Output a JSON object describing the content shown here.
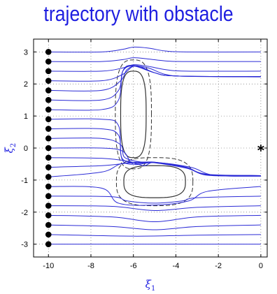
{
  "chart_data": {
    "type": "line",
    "title": "trajectory with obstacle",
    "xlabel": "ξ",
    "xlabel_sub": "1",
    "ylabel": "ξ",
    "ylabel_sub": "2",
    "xlim": [
      -10.7,
      0.3
    ],
    "ylim": [
      -3.4,
      3.4
    ],
    "xticks": [
      -10,
      -8,
      -6,
      -4,
      -2,
      0
    ],
    "yticks": [
      -3,
      -2,
      -1,
      0,
      1,
      2,
      3
    ],
    "grid": "dotted",
    "colors": {
      "trajectory": "#2b2bd6",
      "obstacle": "#333333",
      "start": "#000000",
      "axis_text": "#1f1fe0"
    },
    "start_points": {
      "x": -10,
      "y": [
        -3,
        -2.7,
        -2.4,
        -2.1,
        -1.8,
        -1.5,
        -1.2,
        -0.9,
        -0.6,
        -0.3,
        0,
        0.3,
        0.6,
        0.9,
        1.2,
        1.5,
        1.8,
        2.1,
        2.4,
        2.7,
        3
      ]
    },
    "target": {
      "x": 0,
      "y": 0,
      "marker": "asterisk"
    },
    "obstacles": [
      {
        "cx": -6,
        "cy": 1.05,
        "a": 0.6,
        "b": 1.35,
        "shape": "superellipse",
        "margin_a": 0.25,
        "margin_b": 0.35
      },
      {
        "cx": -5,
        "cy": -1.05,
        "a": 1.45,
        "b": 0.5,
        "shape": "superellipse",
        "margin_a": 0.35,
        "margin_b": 0.25
      }
    ],
    "series": [
      {
        "y0": -3.0,
        "x": [
          -10,
          -6,
          -3,
          0
        ],
        "y": [
          -3.0,
          -3.0,
          -3.0,
          -3.0
        ]
      },
      {
        "y0": -2.7,
        "x": [
          -10,
          -6,
          -3,
          0
        ],
        "y": [
          -2.7,
          -2.75,
          -2.72,
          -2.7
        ]
      },
      {
        "y0": -2.4,
        "x": [
          -10,
          -7,
          -5,
          -3,
          0
        ],
        "y": [
          -2.4,
          -2.45,
          -2.55,
          -2.45,
          -2.4
        ]
      },
      {
        "y0": -2.1,
        "x": [
          -10,
          -7,
          -5,
          -3,
          0
        ],
        "y": [
          -2.1,
          -2.15,
          -2.3,
          -2.15,
          -2.1
        ]
      },
      {
        "y0": -1.8,
        "x": [
          -10,
          -7,
          -5,
          -3,
          0
        ],
        "y": [
          -1.8,
          -1.82,
          -1.95,
          -1.85,
          -1.8
        ]
      },
      {
        "y0": -1.5,
        "x": [
          -10,
          -7,
          -6.3,
          -5,
          -3.7,
          -3,
          0
        ],
        "y": [
          -1.5,
          -1.52,
          -1.65,
          -1.72,
          -1.65,
          -1.55,
          -1.5
        ]
      },
      {
        "y0": -1.2,
        "x": [
          -10,
          -7.5,
          -6.7,
          -5,
          -3.4,
          -2.5,
          0
        ],
        "y": [
          -1.2,
          -1.25,
          -1.72,
          -1.78,
          -1.65,
          -1.35,
          -1.2
        ]
      },
      {
        "y0": -0.9,
        "x": [
          -10,
          -7.5,
          -6.5,
          -5,
          -3.3,
          -2.2,
          0
        ],
        "y": [
          -0.9,
          -0.75,
          -0.48,
          -0.45,
          -0.6,
          -0.85,
          -0.88
        ]
      },
      {
        "y0": -0.6,
        "x": [
          -10,
          -7.5,
          -6.2,
          -5,
          -3.5,
          -2.5,
          0
        ],
        "y": [
          -0.6,
          -0.55,
          -0.47,
          -0.44,
          -0.6,
          -0.85,
          -0.86
        ]
      },
      {
        "y0": -0.3,
        "x": [
          -10,
          -7.5,
          -6.2,
          -5.5,
          -5,
          -3.5,
          -2.5,
          0
        ],
        "y": [
          -0.3,
          -0.32,
          -0.42,
          -0.55,
          -0.45,
          -0.62,
          -0.84,
          -0.86
        ]
      },
      {
        "y0": 0.0,
        "x": [
          -10,
          -7.5,
          -6.5,
          -6,
          -5,
          -3.5,
          -2.5,
          0
        ],
        "y": [
          0.0,
          0.0,
          -0.1,
          -0.5,
          -0.45,
          -0.62,
          -0.82,
          -0.86
        ]
      },
      {
        "y0": 0.3,
        "x": [
          -10,
          -7.5,
          -6.6,
          -6.4,
          -5.5,
          -5,
          -3.5,
          -2.5,
          0
        ],
        "y": [
          0.3,
          0.3,
          0.1,
          -0.3,
          -0.45,
          -0.44,
          -0.62,
          -0.83,
          -0.86
        ]
      },
      {
        "y0": 0.6,
        "x": [
          -10,
          -7.5,
          -6.7,
          -6.5,
          -5.5,
          -5,
          -3.5,
          -2.5,
          0
        ],
        "y": [
          0.6,
          0.6,
          0.4,
          -0.35,
          -0.46,
          -0.45,
          -0.62,
          -0.83,
          -0.86
        ]
      },
      {
        "y0": 0.9,
        "x": [
          -10,
          -7.5,
          -6.7,
          -6.5,
          -5.5,
          -5,
          -3.5,
          -2.5,
          0
        ],
        "y": [
          0.9,
          0.9,
          0.7,
          -0.4,
          -0.47,
          -0.46,
          -0.63,
          -0.83,
          -0.86
        ]
      },
      {
        "y0": 1.2,
        "x": [
          -10,
          -7.5,
          -6.7,
          -6.5,
          -6,
          -5,
          -4,
          0
        ],
        "y": [
          1.2,
          1.2,
          1.5,
          2.4,
          2.58,
          2.35,
          2.25,
          2.23
        ]
      },
      {
        "y0": 1.5,
        "x": [
          -10,
          -7.5,
          -6.7,
          -6.5,
          -6,
          -5,
          -4,
          0
        ],
        "y": [
          1.5,
          1.5,
          1.8,
          2.4,
          2.56,
          2.35,
          2.25,
          2.23
        ]
      },
      {
        "y0": 1.8,
        "x": [
          -10,
          -7.5,
          -6.6,
          -6.3,
          -5.8,
          -5,
          -4,
          0
        ],
        "y": [
          1.8,
          1.8,
          2.1,
          2.45,
          2.57,
          2.35,
          2.25,
          2.23
        ]
      },
      {
        "y0": 2.1,
        "x": [
          -10,
          -7.5,
          -6.5,
          -6,
          -5.3,
          -4.5,
          -3.5,
          0
        ],
        "y": [
          2.1,
          2.1,
          2.3,
          2.55,
          2.5,
          2.3,
          2.24,
          2.22
        ]
      },
      {
        "y0": 2.4,
        "x": [
          -10,
          -7.5,
          -6.5,
          -6,
          -5.3,
          -4.5,
          -3.5,
          0
        ],
        "y": [
          2.4,
          2.4,
          2.5,
          2.6,
          2.55,
          2.45,
          2.4,
          2.4
        ]
      },
      {
        "y0": 2.7,
        "x": [
          -10,
          -7.5,
          -6.5,
          -6,
          -5.3,
          -4.5,
          -3.5,
          0
        ],
        "y": [
          2.7,
          2.7,
          2.76,
          2.82,
          2.78,
          2.72,
          2.7,
          2.7
        ]
      },
      {
        "y0": 3.0,
        "x": [
          -10,
          -7.5,
          -6.5,
          -6,
          -5.3,
          -4.5,
          -3.5,
          0
        ],
        "y": [
          3.0,
          3.0,
          3.08,
          3.15,
          3.12,
          3.03,
          3.0,
          3.0
        ]
      }
    ]
  }
}
